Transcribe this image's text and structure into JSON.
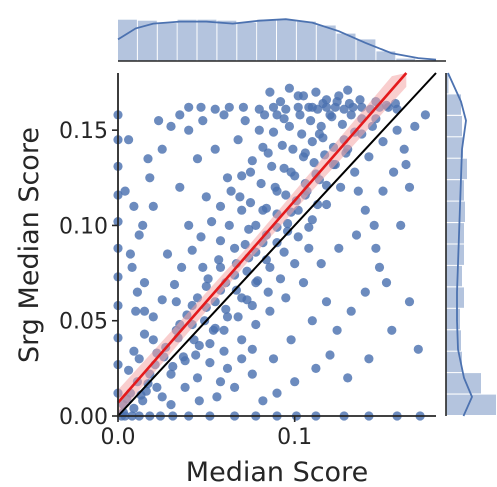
{
  "chart_data": {
    "type": "scatter",
    "subtype": "jointplot-with-regression",
    "xlabel": "Median Score",
    "ylabel": "Srg Median Score",
    "xlim": [
      0.0,
      0.18
    ],
    "ylim": [
      0.0,
      0.18
    ],
    "x_ticks": [
      0.0,
      0.1
    ],
    "x_tick_labels": [
      "0.0",
      "0.1"
    ],
    "y_ticks": [
      0.0,
      0.05,
      0.1,
      0.15
    ],
    "y_tick_labels": [
      "0.00",
      "0.05",
      "0.10",
      "0.15"
    ],
    "grid": false,
    "colors": {
      "points": "#4c72b0",
      "histogram": "#4c72b0",
      "regression_line": "#e41a1c",
      "regression_ci": "#f4a6a6",
      "identity_line": "#000000",
      "axes": "#262626"
    },
    "regression_line": {
      "intercept": 0.007,
      "slope": 1.06
    },
    "identity_line": {
      "intercept": 0.0,
      "slope": 1.0
    },
    "top_histogram": {
      "bin_edges": [
        0.0,
        0.01125,
        0.0225,
        0.03375,
        0.045,
        0.05625,
        0.0675,
        0.07875,
        0.09,
        0.10125,
        0.1125,
        0.12375,
        0.135,
        0.14625,
        0.1575,
        0.16875,
        0.18
      ],
      "counts": [
        0.86,
        0.84,
        0.79,
        0.86,
        0.86,
        0.84,
        0.8,
        0.86,
        0.86,
        0.82,
        0.74,
        0.57,
        0.45,
        0.2,
        0.05,
        0.02
      ],
      "kde": [
        [
          0.0,
          0.45
        ],
        [
          0.01,
          0.68
        ],
        [
          0.02,
          0.78
        ],
        [
          0.035,
          0.82
        ],
        [
          0.05,
          0.82
        ],
        [
          0.065,
          0.78
        ],
        [
          0.08,
          0.84
        ],
        [
          0.095,
          0.87
        ],
        [
          0.11,
          0.8
        ],
        [
          0.125,
          0.62
        ],
        [
          0.14,
          0.38
        ],
        [
          0.155,
          0.16
        ],
        [
          0.17,
          0.06
        ],
        [
          0.18,
          0.03
        ]
      ]
    },
    "right_histogram": {
      "bin_edges": [
        0.0,
        0.01125,
        0.0225,
        0.03375,
        0.045,
        0.05625,
        0.0675,
        0.07875,
        0.09,
        0.10125,
        0.1125,
        0.12375,
        0.135,
        0.14625,
        0.1575,
        0.16875,
        0.18
      ],
      "counts": [
        1.0,
        0.7,
        0.32,
        0.3,
        0.28,
        0.36,
        0.32,
        0.36,
        0.36,
        0.38,
        0.36,
        0.42,
        0.34,
        0.32,
        0.3,
        0.05
      ],
      "kde": [
        [
          0.0,
          0.35
        ],
        [
          0.01,
          0.52
        ],
        [
          0.02,
          0.36
        ],
        [
          0.035,
          0.24
        ],
        [
          0.05,
          0.22
        ],
        [
          0.065,
          0.22
        ],
        [
          0.08,
          0.24
        ],
        [
          0.095,
          0.26
        ],
        [
          0.11,
          0.28
        ],
        [
          0.125,
          0.3
        ],
        [
          0.14,
          0.32
        ],
        [
          0.155,
          0.4
        ],
        [
          0.165,
          0.3
        ],
        [
          0.18,
          0.04
        ]
      ]
    },
    "points": [
      [
        0.002,
        0.0
      ],
      [
        0.004,
        0.0
      ],
      [
        0.008,
        0.0
      ],
      [
        0.012,
        0.0
      ],
      [
        0.018,
        0.0
      ],
      [
        0.024,
        0.0
      ],
      [
        0.031,
        0.0
      ],
      [
        0.04,
        0.0
      ],
      [
        0.052,
        0.0
      ],
      [
        0.066,
        0.0
      ],
      [
        0.078,
        0.0
      ],
      [
        0.09,
        0.0
      ],
      [
        0.101,
        0.0
      ],
      [
        0.112,
        0.0
      ],
      [
        0.128,
        0.0
      ],
      [
        0.142,
        0.0
      ],
      [
        0.158,
        0.0
      ],
      [
        0.171,
        0.0
      ],
      [
        0.0,
        0.012
      ],
      [
        0.0,
        0.027
      ],
      [
        0.0,
        0.041
      ],
      [
        0.0,
        0.058
      ],
      [
        0.0,
        0.073
      ],
      [
        0.0,
        0.088
      ],
      [
        0.0,
        0.102
      ],
      [
        0.0,
        0.116
      ],
      [
        0.0,
        0.131
      ],
      [
        0.0,
        0.145
      ],
      [
        0.0,
        0.158
      ],
      [
        0.003,
        0.006
      ],
      [
        0.007,
        0.012
      ],
      [
        0.011,
        0.018
      ],
      [
        0.014,
        0.008
      ],
      [
        0.006,
        0.024
      ],
      [
        0.018,
        0.022
      ],
      [
        0.022,
        0.015
      ],
      [
        0.009,
        0.034
      ],
      [
        0.026,
        0.031
      ],
      [
        0.03,
        0.022
      ],
      [
        0.015,
        0.043
      ],
      [
        0.034,
        0.041
      ],
      [
        0.038,
        0.029
      ],
      [
        0.02,
        0.052
      ],
      [
        0.042,
        0.048
      ],
      [
        0.046,
        0.037
      ],
      [
        0.025,
        0.061
      ],
      [
        0.05,
        0.057
      ],
      [
        0.054,
        0.045
      ],
      [
        0.032,
        0.069
      ],
      [
        0.058,
        0.066
      ],
      [
        0.062,
        0.052
      ],
      [
        0.036,
        0.078
      ],
      [
        0.066,
        0.074
      ],
      [
        0.07,
        0.062
      ],
      [
        0.042,
        0.087
      ],
      [
        0.074,
        0.083
      ],
      [
        0.078,
        0.07
      ],
      [
        0.047,
        0.094
      ],
      [
        0.082,
        0.091
      ],
      [
        0.086,
        0.078
      ],
      [
        0.053,
        0.102
      ],
      [
        0.09,
        0.099
      ],
      [
        0.094,
        0.086
      ],
      [
        0.058,
        0.11
      ],
      [
        0.098,
        0.107
      ],
      [
        0.102,
        0.094
      ],
      [
        0.064,
        0.118
      ],
      [
        0.106,
        0.116
      ],
      [
        0.11,
        0.103
      ],
      [
        0.07,
        0.126
      ],
      [
        0.114,
        0.124
      ],
      [
        0.118,
        0.111
      ],
      [
        0.076,
        0.134
      ],
      [
        0.122,
        0.132
      ],
      [
        0.126,
        0.12
      ],
      [
        0.082,
        0.141
      ],
      [
        0.13,
        0.14
      ],
      [
        0.134,
        0.128
      ],
      [
        0.088,
        0.149
      ],
      [
        0.138,
        0.148
      ],
      [
        0.142,
        0.136
      ],
      [
        0.094,
        0.156
      ],
      [
        0.146,
        0.156
      ],
      [
        0.15,
        0.144
      ],
      [
        0.04,
        0.162
      ],
      [
        0.047,
        0.162
      ],
      [
        0.055,
        0.161
      ],
      [
        0.063,
        0.162
      ],
      [
        0.071,
        0.162
      ],
      [
        0.08,
        0.161
      ],
      [
        0.088,
        0.162
      ],
      [
        0.095,
        0.161
      ],
      [
        0.102,
        0.162
      ],
      [
        0.108,
        0.162
      ],
      [
        0.113,
        0.161
      ],
      [
        0.118,
        0.162
      ],
      [
        0.123,
        0.162
      ],
      [
        0.128,
        0.161
      ],
      [
        0.133,
        0.162
      ],
      [
        0.138,
        0.162
      ],
      [
        0.143,
        0.161
      ],
      [
        0.148,
        0.162
      ],
      [
        0.153,
        0.162
      ],
      [
        0.158,
        0.161
      ],
      [
        0.105,
        0.168
      ],
      [
        0.112,
        0.17
      ],
      [
        0.118,
        0.166
      ],
      [
        0.125,
        0.168
      ],
      [
        0.13,
        0.171
      ],
      [
        0.109,
        0.155
      ],
      [
        0.115,
        0.152
      ],
      [
        0.121,
        0.157
      ],
      [
        0.127,
        0.153
      ],
      [
        0.132,
        0.158
      ],
      [
        0.104,
        0.148
      ],
      [
        0.11,
        0.144
      ],
      [
        0.116,
        0.146
      ],
      [
        0.122,
        0.141
      ],
      [
        0.128,
        0.145
      ],
      [
        0.134,
        0.149
      ],
      [
        0.099,
        0.14
      ],
      [
        0.105,
        0.136
      ],
      [
        0.111,
        0.133
      ],
      [
        0.117,
        0.137
      ],
      [
        0.123,
        0.132
      ],
      [
        0.129,
        0.138
      ],
      [
        0.094,
        0.13
      ],
      [
        0.1,
        0.126
      ],
      [
        0.106,
        0.122
      ],
      [
        0.112,
        0.127
      ],
      [
        0.118,
        0.121
      ],
      [
        0.089,
        0.12
      ],
      [
        0.095,
        0.116
      ],
      [
        0.101,
        0.113
      ],
      [
        0.107,
        0.118
      ],
      [
        0.113,
        0.111
      ],
      [
        0.084,
        0.109
      ],
      [
        0.09,
        0.106
      ],
      [
        0.096,
        0.101
      ],
      [
        0.102,
        0.108
      ],
      [
        0.108,
        0.099
      ],
      [
        0.078,
        0.1
      ],
      [
        0.084,
        0.095
      ],
      [
        0.09,
        0.091
      ],
      [
        0.096,
        0.097
      ],
      [
        0.072,
        0.09
      ],
      [
        0.078,
        0.086
      ],
      [
        0.084,
        0.082
      ],
      [
        0.067,
        0.08
      ],
      [
        0.073,
        0.076
      ],
      [
        0.079,
        0.071
      ],
      [
        0.061,
        0.07
      ],
      [
        0.067,
        0.066
      ],
      [
        0.073,
        0.061
      ],
      [
        0.055,
        0.06
      ],
      [
        0.061,
        0.056
      ],
      [
        0.049,
        0.05
      ],
      [
        0.055,
        0.046
      ],
      [
        0.043,
        0.04
      ],
      [
        0.037,
        0.031
      ],
      [
        0.031,
        0.026
      ],
      [
        0.015,
        0.07
      ],
      [
        0.012,
        0.095
      ],
      [
        0.02,
        0.11
      ],
      [
        0.025,
        0.14
      ],
      [
        0.018,
        0.125
      ],
      [
        0.03,
        0.152
      ],
      [
        0.028,
        0.085
      ],
      [
        0.035,
        0.12
      ],
      [
        0.04,
        0.1
      ],
      [
        0.045,
        0.135
      ],
      [
        0.05,
        0.115
      ],
      [
        0.033,
        0.06
      ],
      [
        0.048,
        0.078
      ],
      [
        0.058,
        0.092
      ],
      [
        0.062,
        0.125
      ],
      [
        0.068,
        0.145
      ],
      [
        0.07,
        0.108
      ],
      [
        0.075,
        0.128
      ],
      [
        0.08,
        0.15
      ],
      [
        0.085,
        0.138
      ],
      [
        0.09,
        0.158
      ],
      [
        0.04,
        0.15
      ],
      [
        0.055,
        0.14
      ],
      [
        0.006,
        0.145
      ],
      [
        0.004,
        0.118
      ],
      [
        0.008,
        0.078
      ],
      [
        0.01,
        0.055
      ],
      [
        0.02,
        0.04
      ],
      [
        0.022,
        0.033
      ],
      [
        0.012,
        0.03
      ],
      [
        0.016,
        0.013
      ],
      [
        0.025,
        0.01
      ],
      [
        0.03,
        0.006
      ],
      [
        0.038,
        0.015
      ],
      [
        0.045,
        0.02
      ],
      [
        0.052,
        0.028
      ],
      [
        0.06,
        0.034
      ],
      [
        0.07,
        0.04
      ],
      [
        0.078,
        0.048
      ],
      [
        0.086,
        0.055
      ],
      [
        0.095,
        0.062
      ],
      [
        0.105,
        0.07
      ],
      [
        0.115,
        0.08
      ],
      [
        0.125,
        0.088
      ],
      [
        0.135,
        0.095
      ],
      [
        0.145,
        0.1
      ],
      [
        0.148,
        0.078
      ],
      [
        0.14,
        0.065
      ],
      [
        0.132,
        0.055
      ],
      [
        0.124,
        0.045
      ],
      [
        0.12,
        0.032
      ],
      [
        0.112,
        0.025
      ],
      [
        0.1,
        0.018
      ],
      [
        0.09,
        0.012
      ],
      [
        0.082,
        0.008
      ],
      [
        0.15,
        0.118
      ],
      [
        0.156,
        0.128
      ],
      [
        0.16,
        0.1
      ],
      [
        0.165,
        0.06
      ],
      [
        0.17,
        0.035
      ],
      [
        0.155,
        0.045
      ],
      [
        0.142,
        0.03
      ],
      [
        0.13,
        0.02
      ],
      [
        0.162,
        0.14
      ],
      [
        0.168,
        0.152
      ],
      [
        0.174,
        0.158
      ],
      [
        0.165,
        0.12
      ],
      [
        0.118,
        0.06
      ],
      [
        0.11,
        0.05
      ],
      [
        0.098,
        0.04
      ],
      [
        0.088,
        0.03
      ],
      [
        0.076,
        0.022
      ],
      [
        0.066,
        0.015
      ],
      [
        0.056,
        0.01
      ],
      [
        0.046,
        0.008
      ],
      [
        0.1,
        0.08
      ],
      [
        0.108,
        0.088
      ],
      [
        0.092,
        0.072
      ],
      [
        0.085,
        0.065
      ],
      [
        0.076,
        0.058
      ],
      [
        0.068,
        0.052
      ],
      [
        0.06,
        0.045
      ],
      [
        0.052,
        0.038
      ],
      [
        0.044,
        0.032
      ],
      [
        0.035,
        0.048
      ],
      [
        0.042,
        0.058
      ],
      [
        0.05,
        0.068
      ],
      [
        0.058,
        0.078
      ],
      [
        0.066,
        0.088
      ],
      [
        0.074,
        0.098
      ],
      [
        0.082,
        0.108
      ],
      [
        0.09,
        0.118
      ],
      [
        0.098,
        0.128
      ],
      [
        0.106,
        0.138
      ],
      [
        0.114,
        0.148
      ],
      [
        0.12,
        0.158
      ],
      [
        0.136,
        0.118
      ],
      [
        0.14,
        0.108
      ],
      [
        0.146,
        0.088
      ],
      [
        0.152,
        0.07
      ],
      [
        0.158,
        0.15
      ],
      [
        0.163,
        0.132
      ],
      [
        0.138,
        0.156
      ],
      [
        0.144,
        0.152
      ],
      [
        0.003,
        0.002
      ],
      [
        0.005,
        0.009
      ],
      [
        0.009,
        0.004
      ],
      [
        0.013,
        0.011
      ],
      [
        0.017,
        0.017
      ],
      [
        0.021,
        0.027
      ],
      [
        0.027,
        0.036
      ],
      [
        0.033,
        0.045
      ],
      [
        0.039,
        0.053
      ],
      [
        0.045,
        0.062
      ],
      [
        0.051,
        0.072
      ],
      [
        0.057,
        0.082
      ],
      [
        0.063,
        0.1
      ],
      [
        0.069,
        0.115
      ],
      [
        0.075,
        0.112
      ],
      [
        0.081,
        0.122
      ],
      [
        0.087,
        0.131
      ],
      [
        0.093,
        0.142
      ],
      [
        0.097,
        0.152
      ],
      [
        0.103,
        0.158
      ],
      [
        0.11,
        0.162
      ],
      [
        0.116,
        0.164
      ],
      [
        0.124,
        0.165
      ],
      [
        0.131,
        0.164
      ],
      [
        0.137,
        0.166
      ],
      [
        0.146,
        0.165
      ],
      [
        0.152,
        0.163
      ],
      [
        0.157,
        0.164
      ],
      [
        0.07,
        0.03
      ],
      [
        0.076,
        0.035
      ],
      [
        0.062,
        0.025
      ],
      [
        0.058,
        0.018
      ],
      [
        0.015,
        0.055
      ],
      [
        0.011,
        0.065
      ],
      [
        0.007,
        0.085
      ],
      [
        0.014,
        0.1
      ],
      [
        0.009,
        0.11
      ],
      [
        0.017,
        0.135
      ],
      [
        0.023,
        0.155
      ],
      [
        0.035,
        0.158
      ],
      [
        0.048,
        0.155
      ],
      [
        0.06,
        0.158
      ],
      [
        0.072,
        0.155
      ],
      [
        0.083,
        0.158
      ],
      [
        0.092,
        0.165
      ],
      [
        0.097,
        0.172
      ],
      [
        0.102,
        0.168
      ],
      [
        0.086,
        0.17
      ]
    ]
  }
}
